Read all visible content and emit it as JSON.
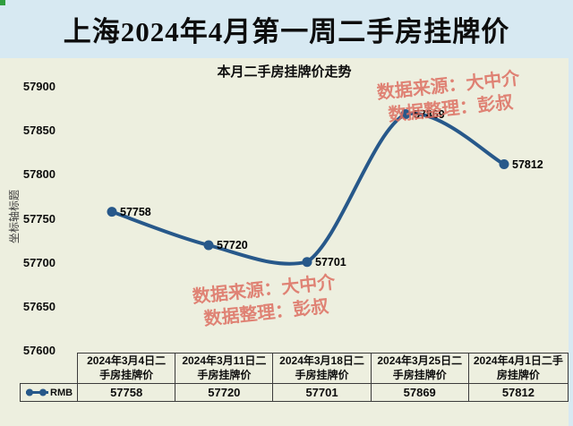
{
  "header": {
    "title": "上海2024年4月第一周二手房挂牌价"
  },
  "chart": {
    "watermark": {
      "source": "数据来源：大中介",
      "editor": "数据整理：彭叔"
    }
  },
  "chart_data": {
    "type": "line",
    "title": "本月二手房挂牌价走势",
    "categories": [
      "2024年3月4日二手房挂牌价",
      "2024年3月11日二手房挂牌价",
      "2024年3月18日二手房挂牌价",
      "2024年3月25日二手房挂牌价",
      "2024年4月1日二手房挂牌价"
    ],
    "series": [
      {
        "name": "RMB",
        "values": [
          57758,
          57720,
          57701,
          57869,
          57812
        ]
      }
    ],
    "xlabel": "",
    "ylabel": "坐标轴标题",
    "ylim": [
      57600,
      57900
    ],
    "yticks": [
      57900,
      57850,
      57800,
      57750,
      57700,
      57650,
      57600
    ],
    "grid": false,
    "smooth": true,
    "data_labels": true,
    "legend_position": "data-table-left"
  },
  "colors": {
    "background": "#d7e9f2",
    "panel": "#edefdf",
    "line": "#27588a",
    "watermark": "#dd6f62",
    "table_border": "#3b3b3b",
    "green": "#2f9e3f"
  }
}
